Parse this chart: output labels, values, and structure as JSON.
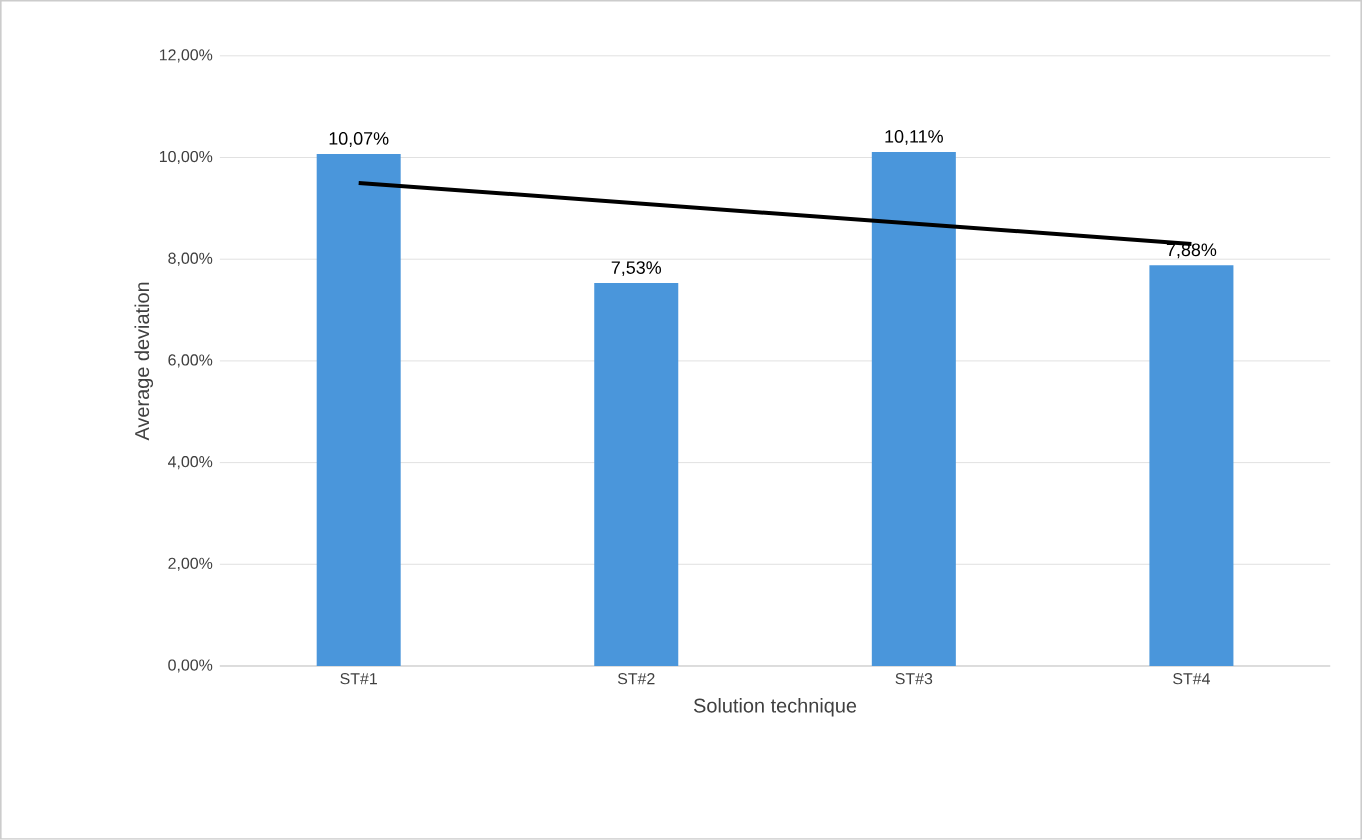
{
  "chart_data": {
    "type": "bar",
    "xlabel": "Solution technique",
    "ylabel": "Average deviation",
    "categories": [
      "ST#1",
      "ST#2",
      "ST#3",
      "ST#4"
    ],
    "series": [
      {
        "color": "#4a96db",
        "values": [
          10.07,
          7.53,
          10.11,
          7.88
        ],
        "value_labels": [
          "10,07%",
          "7,53%",
          "10,11%",
          "7,88%"
        ]
      },
      {
        "type": "line",
        "color": "#000000",
        "x": [
          "ST#1",
          "ST#4"
        ],
        "values": [
          9.5,
          8.3
        ]
      }
    ],
    "ylim": [
      0,
      12
    ],
    "yticks": [
      {
        "value": 0,
        "label": "0,00%"
      },
      {
        "value": 2,
        "label": "2,00%"
      },
      {
        "value": 4,
        "label": "4,00%"
      },
      {
        "value": 6,
        "label": "6,00%"
      },
      {
        "value": 8,
        "label": "8,00%"
      },
      {
        "value": 10,
        "label": "10,00%"
      },
      {
        "value": 12,
        "label": "12,00%"
      }
    ],
    "grid": "y"
  }
}
